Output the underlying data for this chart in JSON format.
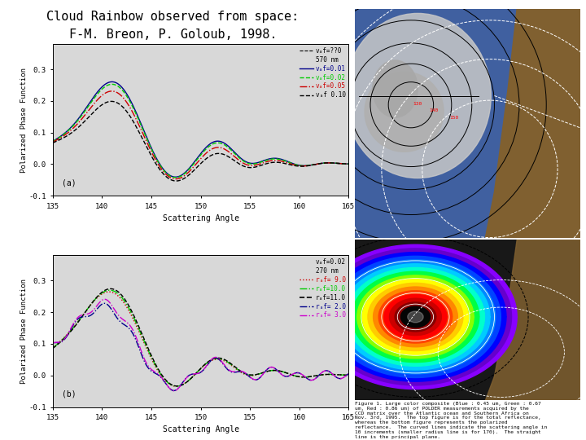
{
  "title_line1": "Cloud Rainbow observed from space:",
  "title_line2": "F-M. Breon, P. Goloub, 1998.",
  "title_fontsize": 11,
  "bg_color": "#ffffff",
  "plot1": {
    "legend_colors": [
      "#00008B",
      "#00cc00",
      "#cc0000",
      "#000000"
    ],
    "legend_styles": [
      "solid",
      "dashed",
      "dashdot",
      "dashed"
    ],
    "label_a": "(a)",
    "xlabel": "Scattering Angle",
    "ylabel": "Polarized Phase Function",
    "xlim": [
      135,
      165
    ],
    "ylim": [
      -0.1,
      0.38
    ],
    "ytick_vals": [
      -0.1,
      0.0,
      0.1,
      0.2,
      0.3
    ],
    "ytick_labels": [
      "-0.1",
      "0.0",
      "0.1",
      "0.2",
      "0.3"
    ],
    "xtick_vals": [
      135,
      140,
      145,
      150,
      155,
      160,
      165
    ],
    "xtick_labels": [
      "135",
      "140",
      "145",
      "150",
      "155",
      "160",
      "165"
    ]
  },
  "plot2": {
    "legend_colors": [
      "#cc0000",
      "#00cc00",
      "#000000",
      "#00008B",
      "#cc00cc"
    ],
    "legend_styles": [
      "dotted",
      "dashdot",
      "dashed",
      "dashdot",
      "dashdot"
    ],
    "label_b": "(b)",
    "xlabel": "Scattering Angle",
    "ylabel": "Polarized Phase Function",
    "xlim": [
      135,
      165
    ],
    "ylim": [
      -0.1,
      0.38
    ],
    "ytick_vals": [
      -0.1,
      0.0,
      0.1,
      0.2,
      0.3
    ],
    "ytick_labels": [
      "-0.1",
      "0.0",
      "0.1",
      "0.2",
      "0.3"
    ],
    "xtick_vals": [
      135,
      140,
      145,
      150,
      155,
      160,
      165
    ],
    "xtick_labels": [
      "135",
      "140",
      "145",
      "150",
      "155",
      "160",
      "165"
    ]
  },
  "caption": "Figure 1. Large color composite (Blue : 0.45 um, Green : 0.67\num, Red : 0.86 um) of POLDER measurements acquired by the\nCCD matrix over the Atlantic ocean and Southern Africa on\nNov. 3rd, 1995.  The top figure is for the total reflectance,\nwhereas the bottom figure represents the polarized\nreflectance.  The curved lines indicate the scattering angle in\n10 increments (smaller radius line is for 170).  The straight\nline is the principal plane.",
  "img1_bg": "#5070a0",
  "img2_bg": "#101010",
  "land_color": "#806030",
  "ocean_color": "#4060a0"
}
